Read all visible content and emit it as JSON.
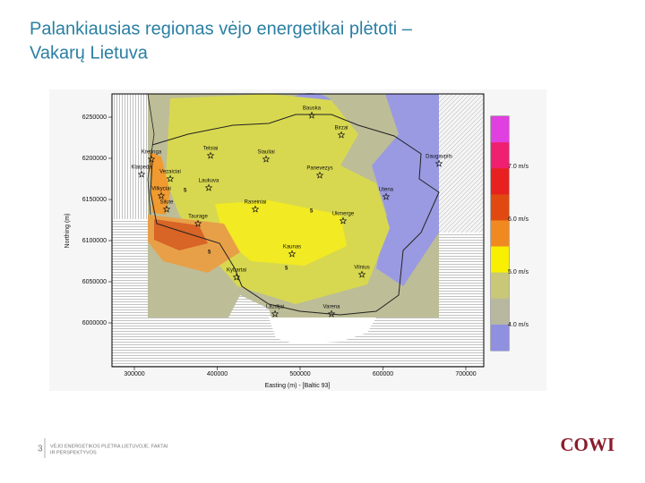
{
  "slide": {
    "title_lines": [
      "Palankiausias regionas vėjo energetikai plėtoti –",
      "Vakarų Lietuva"
    ],
    "map": {
      "y_axis_title": "Northing (m)",
      "x_axis_title": "Easting (m) - [Baltic 93]",
      "y_ticks": [
        "6250000",
        "6200000",
        "6150000",
        "6100000",
        "6050000",
        "6000000"
      ],
      "x_ticks": [
        "300000",
        "400000",
        "500000",
        "600000",
        "700000"
      ],
      "legend_labels": [
        "7.0 m/s",
        "6.0 m/s",
        "5.0 m/s",
        "4.0 m/s"
      ],
      "places": [
        "Bauska",
        "Birzai",
        "Telsiai",
        "Siauliai",
        "Kretinga",
        "Klaipeda",
        "Vezaiciai",
        "Panevezys",
        "Daugavpils",
        "Laukuva",
        "Vilkyciai",
        "Utena",
        "Silute",
        "Raseiniai",
        "Ukmerge",
        "Taurage",
        "Kaunas",
        "Kybartai",
        "Vilnius",
        "Lazdijai",
        "Varena"
      ],
      "contour_labels": [
        "5",
        "5",
        "5",
        "5"
      ]
    },
    "footer": {
      "page_number": "3",
      "text_lines": [
        "VĖJO ENERGETIKOS PLĖTRA LIETUVOJE. FAKTAI",
        "IR PERSPEKTYVOS"
      ],
      "logo": "COWI"
    }
  }
}
